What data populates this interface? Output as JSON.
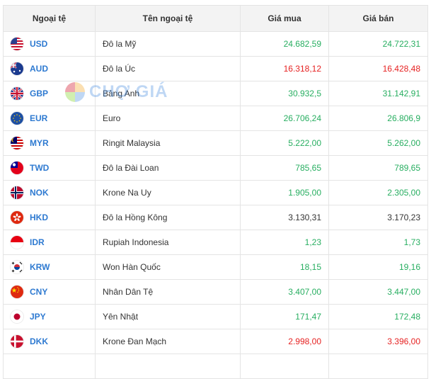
{
  "headers": {
    "code": "Ngoại tệ",
    "name": "Tên ngoại tệ",
    "buy": "Giá mua",
    "sell": "Giá bán"
  },
  "watermark": "CHỢ GIÁ",
  "colors": {
    "up": "#27ae60",
    "down": "#e62222",
    "code": "#2e7ad1"
  },
  "rows": [
    {
      "code": "USD",
      "name": "Đô la Mỹ",
      "buy": "24.682,59",
      "sell": "24.722,31",
      "buy_trend": "up",
      "sell_trend": "up",
      "flag": "us-flag-icon"
    },
    {
      "code": "AUD",
      "name": "Đô la Úc",
      "buy": "16.318,12",
      "sell": "16.428,48",
      "buy_trend": "down",
      "sell_trend": "down",
      "flag": "au-flag-icon"
    },
    {
      "code": "GBP",
      "name": "Bảng Anh",
      "buy": "30.932,5",
      "sell": "31.142,91",
      "buy_trend": "up",
      "sell_trend": "up",
      "flag": "gb-flag-icon"
    },
    {
      "code": "EUR",
      "name": "Euro",
      "buy": "26.706,24",
      "sell": "26.806,9",
      "buy_trend": "up",
      "sell_trend": "up",
      "flag": "eu-flag-icon"
    },
    {
      "code": "MYR",
      "name": "Ringit Malaysia",
      "buy": "5.222,00",
      "sell": "5.262,00",
      "buy_trend": "up",
      "sell_trend": "up",
      "flag": "my-flag-icon"
    },
    {
      "code": "TWD",
      "name": "Đô la Đài Loan",
      "buy": "785,65",
      "sell": "789,65",
      "buy_trend": "up",
      "sell_trend": "up",
      "flag": "tw-flag-icon"
    },
    {
      "code": "NOK",
      "name": "Krone Na Uy",
      "buy": "1.905,00",
      "sell": "2.305,00",
      "buy_trend": "up",
      "sell_trend": "up",
      "flag": "no-flag-icon"
    },
    {
      "code": "HKD",
      "name": "Đô la Hồng Kông",
      "buy": "3.130,31",
      "sell": "3.170,23",
      "buy_trend": "neutral",
      "sell_trend": "neutral",
      "flag": "hk-flag-icon"
    },
    {
      "code": "IDR",
      "name": "Rupiah Indonesia",
      "buy": "1,23",
      "sell": "1,73",
      "buy_trend": "up",
      "sell_trend": "up",
      "flag": "id-flag-icon"
    },
    {
      "code": "KRW",
      "name": "Won Hàn Quốc",
      "buy": "18,15",
      "sell": "19,16",
      "buy_trend": "up",
      "sell_trend": "up",
      "flag": "kr-flag-icon"
    },
    {
      "code": "CNY",
      "name": "Nhân Dân Tệ",
      "buy": "3.407,00",
      "sell": "3.447,00",
      "buy_trend": "up",
      "sell_trend": "up",
      "flag": "cn-flag-icon"
    },
    {
      "code": "JPY",
      "name": "Yên Nhật",
      "buy": "171,47",
      "sell": "172,48",
      "buy_trend": "up",
      "sell_trend": "up",
      "flag": "jp-flag-icon"
    },
    {
      "code": "DKK",
      "name": "Krone Đan Mạch",
      "buy": "2.998,00",
      "sell": "3.396,00",
      "buy_trend": "down",
      "sell_trend": "down",
      "flag": "dk-flag-icon"
    },
    {
      "code": "",
      "name": "",
      "buy": "",
      "sell": "",
      "buy_trend": "neutral",
      "sell_trend": "neutral",
      "flag": ""
    }
  ]
}
